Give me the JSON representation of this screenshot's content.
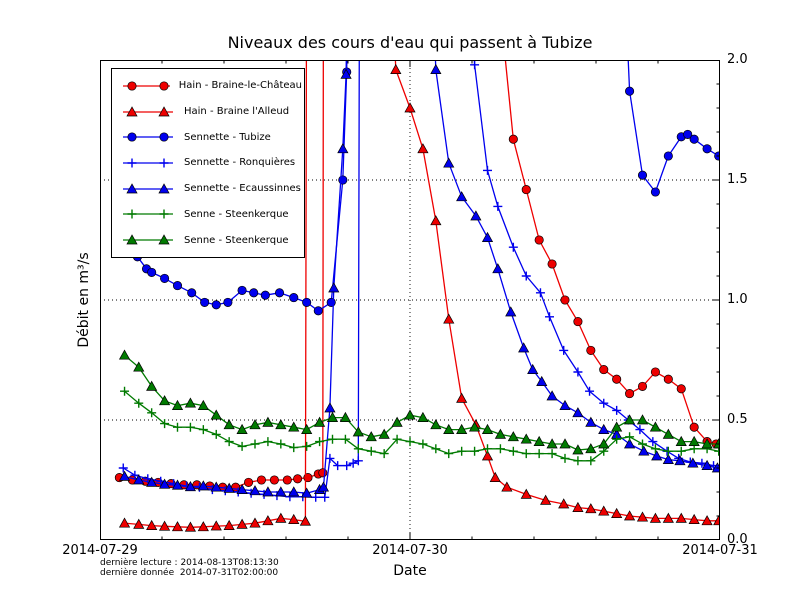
{
  "title": "Niveaux des cours d'eau qui passent à Tubize",
  "axes": {
    "ylabel": "Débit en m³/s",
    "xlabel": "Date",
    "y_ticks": [
      "0.0",
      "0.5",
      "1.0",
      "1.5",
      "2.0"
    ],
    "x_ticks": [
      "2014-07-29",
      "2014-07-30",
      "2014-07-31"
    ],
    "ylim": [
      0,
      2
    ],
    "xlim_hours": [
      0,
      48
    ],
    "grid": "dotted",
    "y_labels_side": "right"
  },
  "annotations": {
    "line1": "dernière lecture : 2014-08-13T08:13:30",
    "line2": "dernière donnée  2014-07-31T02:00:00"
  },
  "colors": {
    "red": "#ee0000",
    "blue": "#0000ee",
    "green": "#007a00",
    "axis": "#000000",
    "background": "#ffffff"
  },
  "chart_data": {
    "type": "line",
    "x_unit": "hours since 2014-07-29 00:00",
    "legend_position": "upper left",
    "note": "value 2.6 encodes spikes that go off-scale above ylim max 2.0",
    "series": [
      {
        "name": "Hain - Braine-le-Château",
        "color": "#ee0000",
        "marker": "circle",
        "points": [
          [
            1.5,
            0.26
          ],
          [
            2.5,
            0.25
          ],
          [
            3.5,
            0.245
          ],
          [
            4.5,
            0.24
          ],
          [
            5.5,
            0.235
          ],
          [
            6.5,
            0.23
          ],
          [
            7.5,
            0.23
          ],
          [
            8.5,
            0.225
          ],
          [
            9.5,
            0.22
          ],
          [
            10.5,
            0.22
          ],
          [
            11.5,
            0.24
          ],
          [
            12.5,
            0.25
          ],
          [
            13.5,
            0.25
          ],
          [
            14.5,
            0.25
          ],
          [
            15.3,
            0.255
          ],
          [
            16.1,
            0.26
          ],
          [
            16.9,
            0.275
          ],
          [
            17.25,
            0.28
          ],
          [
            17.3,
            2.6
          ],
          [
            30.9,
            2.6
          ],
          [
            31.2,
            2.1
          ],
          [
            32,
            1.67
          ],
          [
            33,
            1.46
          ],
          [
            34,
            1.25
          ],
          [
            35,
            1.15
          ],
          [
            36,
            1.0
          ],
          [
            37,
            0.91
          ],
          [
            38,
            0.79
          ],
          [
            39,
            0.71
          ],
          [
            40,
            0.67
          ],
          [
            41,
            0.61
          ],
          [
            42,
            0.64
          ],
          [
            43,
            0.7
          ],
          [
            44,
            0.67
          ],
          [
            45,
            0.63
          ],
          [
            46,
            0.47
          ],
          [
            47,
            0.41
          ],
          [
            47.7,
            0.4
          ]
        ]
      },
      {
        "name": "Hain - Braine l'Alleud",
        "color": "#ee0000",
        "marker": "triangle",
        "points": [
          [
            1.9,
            0.07
          ],
          [
            3,
            0.065
          ],
          [
            4,
            0.06
          ],
          [
            5,
            0.057
          ],
          [
            6,
            0.055
          ],
          [
            7,
            0.053
          ],
          [
            8,
            0.055
          ],
          [
            9,
            0.058
          ],
          [
            10,
            0.06
          ],
          [
            11,
            0.065
          ],
          [
            12,
            0.07
          ],
          [
            13,
            0.08
          ],
          [
            14,
            0.09
          ],
          [
            15,
            0.085
          ],
          [
            15.9,
            0.078
          ],
          [
            16,
            2.6
          ],
          [
            22.4,
            2.6
          ],
          [
            22.9,
            1.96
          ],
          [
            24,
            1.8
          ],
          [
            25,
            1.63
          ],
          [
            26,
            1.33
          ],
          [
            27,
            0.92
          ],
          [
            28,
            0.59
          ],
          [
            29.1,
            0.48
          ],
          [
            30,
            0.35
          ],
          [
            30.6,
            0.26
          ],
          [
            31.5,
            0.22
          ],
          [
            33,
            0.19
          ],
          [
            34.5,
            0.165
          ],
          [
            35.9,
            0.15
          ],
          [
            37,
            0.135
          ],
          [
            38,
            0.13
          ],
          [
            39,
            0.12
          ],
          [
            40,
            0.11
          ],
          [
            41,
            0.1
          ],
          [
            42,
            0.095
          ],
          [
            43,
            0.09
          ],
          [
            44,
            0.09
          ],
          [
            45,
            0.09
          ],
          [
            46,
            0.085
          ],
          [
            47,
            0.08
          ],
          [
            47.9,
            0.08
          ]
        ]
      },
      {
        "name": "Sennette - Tubize",
        "color": "#0000ee",
        "marker": "circle",
        "points": [
          [
            2.2,
            1.24
          ],
          [
            2.9,
            1.18
          ],
          [
            3.6,
            1.13
          ],
          [
            4,
            1.115
          ],
          [
            5,
            1.09
          ],
          [
            6,
            1.06
          ],
          [
            7.1,
            1.03
          ],
          [
            8.1,
            0.99
          ],
          [
            9,
            0.98
          ],
          [
            9.9,
            0.99
          ],
          [
            11,
            1.04
          ],
          [
            11.9,
            1.03
          ],
          [
            12.8,
            1.02
          ],
          [
            13.9,
            1.03
          ],
          [
            15,
            1.01
          ],
          [
            16,
            0.99
          ],
          [
            16.9,
            0.955
          ],
          [
            17.9,
            0.99
          ],
          [
            18.8,
            1.5
          ],
          [
            19.1,
            1.95
          ],
          [
            19.25,
            2.6
          ],
          [
            40.4,
            2.6
          ],
          [
            41,
            1.87
          ],
          [
            42,
            1.52
          ],
          [
            43,
            1.45
          ],
          [
            44,
            1.6
          ],
          [
            45,
            1.68
          ],
          [
            45.5,
            1.69
          ],
          [
            46,
            1.67
          ],
          [
            47,
            1.63
          ],
          [
            47.9,
            1.6
          ]
        ]
      },
      {
        "name": "Sennette - Ronquières",
        "color": "#0000ee",
        "marker": "plus",
        "points": [
          [
            1.8,
            0.3
          ],
          [
            2.7,
            0.27
          ],
          [
            3.7,
            0.255
          ],
          [
            4.7,
            0.245
          ],
          [
            5.7,
            0.235
          ],
          [
            6.7,
            0.225
          ],
          [
            7.7,
            0.22
          ],
          [
            8.7,
            0.21
          ],
          [
            9.7,
            0.205
          ],
          [
            10.7,
            0.2
          ],
          [
            11.7,
            0.195
          ],
          [
            12.7,
            0.19
          ],
          [
            13.7,
            0.185
          ],
          [
            14.7,
            0.18
          ],
          [
            15.7,
            0.18
          ],
          [
            16.7,
            0.178
          ],
          [
            17.4,
            0.178
          ],
          [
            17.8,
            0.34
          ],
          [
            18.4,
            0.31
          ],
          [
            19.1,
            0.31
          ],
          [
            19.6,
            0.32
          ],
          [
            20,
            0.33
          ],
          [
            20.1,
            2.6
          ],
          [
            28.6,
            2.6
          ],
          [
            29,
            1.98
          ],
          [
            30,
            1.54
          ],
          [
            30.8,
            1.39
          ],
          [
            32,
            1.22
          ],
          [
            33,
            1.1
          ],
          [
            34.1,
            1.03
          ],
          [
            34.8,
            0.93
          ],
          [
            35.9,
            0.79
          ],
          [
            37,
            0.7
          ],
          [
            37.9,
            0.62
          ],
          [
            39,
            0.57
          ],
          [
            40,
            0.54
          ],
          [
            40.9,
            0.5
          ],
          [
            41.8,
            0.46
          ],
          [
            42.8,
            0.41
          ],
          [
            43.9,
            0.37
          ],
          [
            44.8,
            0.34
          ],
          [
            45.7,
            0.325
          ],
          [
            46.6,
            0.32
          ],
          [
            47.5,
            0.31
          ]
        ]
      },
      {
        "name": "Sennette - Ecaussinnes",
        "color": "#0000ee",
        "marker": "triangle",
        "points": [
          [
            1.9,
            0.265
          ],
          [
            3,
            0.25
          ],
          [
            4,
            0.24
          ],
          [
            5,
            0.232
          ],
          [
            6,
            0.228
          ],
          [
            7,
            0.222
          ],
          [
            8,
            0.225
          ],
          [
            9,
            0.22
          ],
          [
            10,
            0.215
          ],
          [
            11,
            0.21
          ],
          [
            12,
            0.205
          ],
          [
            13,
            0.2
          ],
          [
            14,
            0.2
          ],
          [
            15,
            0.2
          ],
          [
            16,
            0.195
          ],
          [
            17,
            0.21
          ],
          [
            17.3,
            0.22
          ],
          [
            17.8,
            0.55
          ],
          [
            18.1,
            1.05
          ],
          [
            18.8,
            1.63
          ],
          [
            19.05,
            1.94
          ],
          [
            19.2,
            2.6
          ],
          [
            25.6,
            2.6
          ],
          [
            26,
            1.96
          ],
          [
            27,
            1.57
          ],
          [
            28,
            1.43
          ],
          [
            29.1,
            1.35
          ],
          [
            30,
            1.26
          ],
          [
            30.8,
            1.13
          ],
          [
            31.8,
            0.95
          ],
          [
            32.8,
            0.8
          ],
          [
            33.5,
            0.71
          ],
          [
            34.2,
            0.66
          ],
          [
            35,
            0.6
          ],
          [
            36,
            0.56
          ],
          [
            37,
            0.53
          ],
          [
            38,
            0.49
          ],
          [
            39,
            0.46
          ],
          [
            40,
            0.44
          ],
          [
            41,
            0.4
          ],
          [
            42.1,
            0.37
          ],
          [
            43.1,
            0.35
          ],
          [
            44,
            0.335
          ],
          [
            44.9,
            0.33
          ],
          [
            45.9,
            0.32
          ],
          [
            47,
            0.31
          ],
          [
            47.8,
            0.3
          ]
        ]
      },
      {
        "name": "Senne - Steenkerque",
        "color": "#007a00",
        "marker": "plus",
        "points": [
          [
            1.9,
            0.62
          ],
          [
            3,
            0.57
          ],
          [
            4,
            0.53
          ],
          [
            5,
            0.485
          ],
          [
            6,
            0.47
          ],
          [
            7,
            0.47
          ],
          [
            8,
            0.46
          ],
          [
            9,
            0.44
          ],
          [
            10,
            0.41
          ],
          [
            11,
            0.39
          ],
          [
            12,
            0.4
          ],
          [
            13,
            0.41
          ],
          [
            14,
            0.4
          ],
          [
            15,
            0.385
          ],
          [
            16,
            0.39
          ],
          [
            17,
            0.41
          ],
          [
            18,
            0.42
          ],
          [
            19,
            0.42
          ],
          [
            20,
            0.38
          ],
          [
            21,
            0.37
          ],
          [
            22,
            0.36
          ],
          [
            23,
            0.42
          ],
          [
            24,
            0.41
          ],
          [
            25,
            0.4
          ],
          [
            26,
            0.38
          ],
          [
            27,
            0.36
          ],
          [
            28,
            0.37
          ],
          [
            29,
            0.37
          ],
          [
            30,
            0.38
          ],
          [
            31,
            0.38
          ],
          [
            32,
            0.37
          ],
          [
            33,
            0.36
          ],
          [
            34,
            0.36
          ],
          [
            35,
            0.36
          ],
          [
            36,
            0.34
          ],
          [
            37,
            0.33
          ],
          [
            38,
            0.33
          ],
          [
            39,
            0.37
          ],
          [
            40,
            0.42
          ],
          [
            41,
            0.43
          ],
          [
            42,
            0.4
          ],
          [
            43,
            0.38
          ],
          [
            44,
            0.37
          ],
          [
            45,
            0.37
          ],
          [
            46,
            0.38
          ],
          [
            47,
            0.38
          ],
          [
            47.9,
            0.37
          ]
        ]
      },
      {
        "name": "Senne - Steenkerque",
        "color": "#007a00",
        "marker": "triangle",
        "points": [
          [
            1.9,
            0.77
          ],
          [
            3,
            0.72
          ],
          [
            4,
            0.64
          ],
          [
            5,
            0.58
          ],
          [
            6,
            0.56
          ],
          [
            7,
            0.57
          ],
          [
            8,
            0.56
          ],
          [
            9,
            0.52
          ],
          [
            10,
            0.48
          ],
          [
            11,
            0.46
          ],
          [
            12,
            0.48
          ],
          [
            13,
            0.49
          ],
          [
            14,
            0.48
          ],
          [
            15,
            0.47
          ],
          [
            16,
            0.46
          ],
          [
            17,
            0.49
          ],
          [
            18,
            0.51
          ],
          [
            19,
            0.51
          ],
          [
            20,
            0.45
          ],
          [
            21,
            0.43
          ],
          [
            22,
            0.44
          ],
          [
            23,
            0.49
          ],
          [
            24,
            0.52
          ],
          [
            25,
            0.51
          ],
          [
            26,
            0.48
          ],
          [
            27,
            0.46
          ],
          [
            28,
            0.46
          ],
          [
            29,
            0.47
          ],
          [
            30,
            0.46
          ],
          [
            31,
            0.44
          ],
          [
            32,
            0.43
          ],
          [
            33,
            0.42
          ],
          [
            34,
            0.41
          ],
          [
            35,
            0.4
          ],
          [
            36,
            0.4
          ],
          [
            37,
            0.375
          ],
          [
            38,
            0.38
          ],
          [
            39,
            0.4
          ],
          [
            40,
            0.47
          ],
          [
            41,
            0.5
          ],
          [
            42,
            0.5
          ],
          [
            43,
            0.47
          ],
          [
            44,
            0.44
          ],
          [
            45,
            0.41
          ],
          [
            46,
            0.41
          ],
          [
            47,
            0.4
          ],
          [
            47.9,
            0.4
          ]
        ]
      }
    ]
  }
}
